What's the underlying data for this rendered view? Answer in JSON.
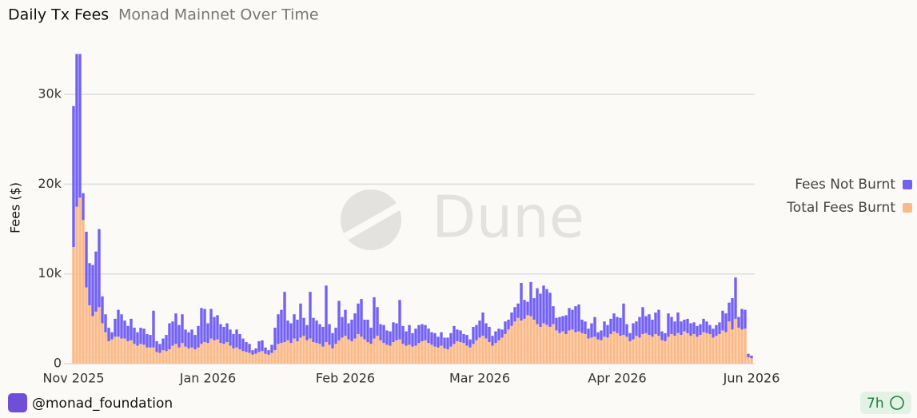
{
  "chart_data": {
    "type": "stacked_bar",
    "title": "Daily Tx Fees",
    "subtitle": "Monad Mainnet Over Time",
    "y_label": "Fees ($)",
    "watermark": "Dune",
    "footer": {
      "author": "@monad_foundation",
      "updated": "7h"
    },
    "grid": true,
    "legend": "right",
    "ylim": [
      0,
      35000
    ],
    "yticks": [
      0,
      {
        "value": 10000,
        "label": "10k"
      },
      {
        "value": 20000,
        "label": "20k"
      },
      {
        "value": 30000,
        "label": "30k"
      }
    ],
    "categories": [
      "Nov 2025",
      null,
      null,
      null,
      null,
      null,
      null,
      null,
      null,
      null,
      null,
      null,
      null,
      null,
      null,
      null,
      null,
      null,
      null,
      null,
      null,
      null,
      null,
      null,
      null,
      null,
      null,
      null,
      null,
      null,
      null,
      null,
      null,
      null,
      null,
      null,
      null,
      null,
      null,
      null,
      null,
      null,
      "Jan 2026",
      null,
      null,
      null,
      null,
      null,
      null,
      null,
      null,
      null,
      null,
      null,
      null,
      null,
      null,
      null,
      null,
      null,
      null,
      null,
      null,
      null,
      null,
      null,
      null,
      null,
      null,
      null,
      null,
      null,
      null,
      null,
      null,
      null,
      null,
      null,
      null,
      null,
      null,
      null,
      null,
      null,
      null,
      "Feb 2026",
      null,
      null,
      null,
      null,
      null,
      null,
      null,
      null,
      null,
      null,
      null,
      null,
      null,
      null,
      null,
      null,
      null,
      null,
      null,
      null,
      null,
      null,
      null,
      null,
      null,
      null,
      null,
      null,
      null,
      null,
      null,
      null,
      null,
      null,
      null,
      null,
      null,
      null,
      null,
      null,
      null,
      "Mar 2026",
      null,
      null,
      null,
      null,
      null,
      null,
      null,
      null,
      null,
      null,
      null,
      null,
      null,
      null,
      null,
      null,
      null,
      null,
      null,
      null,
      null,
      null,
      null,
      null,
      null,
      null,
      null,
      null,
      null,
      null,
      null,
      null,
      null,
      null,
      null,
      null,
      null,
      null,
      null,
      null,
      null,
      null,
      "Apr 2026",
      null,
      null,
      null,
      null,
      null,
      null,
      null,
      null,
      null,
      null,
      null,
      null,
      null,
      null,
      null,
      null,
      null,
      null,
      null,
      null,
      null,
      null,
      null,
      null,
      null,
      null,
      null,
      null,
      null,
      null,
      null,
      null,
      null,
      null,
      null,
      null,
      null,
      null,
      null,
      null,
      null,
      "Jun 2026"
    ],
    "series": [
      {
        "name": "Fees Not Burnt",
        "color": "#7361f3",
        "values": [
          15700,
          17000,
          16000,
          3000,
          6200,
          4700,
          5700,
          6700,
          8700,
          3000,
          2000,
          1500,
          800,
          2000,
          3000,
          2700,
          2000,
          1700,
          2400,
          1800,
          1500,
          1800,
          1800,
          1500,
          1400,
          4100,
          1200,
          1000,
          1300,
          1800,
          2900,
          2700,
          3400,
          2500,
          3200,
          1900,
          1800,
          2000,
          1600,
          2400,
          4000,
          3700,
          2200,
          3300,
          2600,
          2700,
          2100,
          1900,
          2100,
          1800,
          1600,
          2000,
          1700,
          1400,
          1100,
          1000,
          500,
          600,
          1200,
          1200,
          700,
          500,
          900,
          2500,
          3300,
          3700,
          5600,
          2200,
          2200,
          2700,
          2400,
          3800,
          2000,
          1700,
          5200,
          2700,
          2500,
          2200,
          2200,
          6300,
          2300,
          1700,
          1800,
          4400,
          2300,
          2900,
          1800,
          2400,
          2800,
          3400,
          4200,
          2200,
          2500,
          1800,
          4600,
          3200,
          1800,
          2000,
          1600,
          1600,
          2200,
          1900,
          4400,
          2000,
          1600,
          2200,
          1500,
          1900,
          2000,
          1900,
          1700,
          1600,
          1400,
          1500,
          1200,
          1500,
          1200,
          1300,
          1500,
          2000,
          1300,
          1300,
          1000,
          1200,
          900,
          1900,
          1700,
          1900,
          2600,
          1700,
          1700,
          1100,
          1300,
          1300,
          900,
          1400,
          1100,
          1500,
          1600,
          1600,
          4200,
          2100,
          1500,
          3800,
          2400,
          4000,
          3700,
          4200,
          4000,
          3800,
          2000,
          1400,
          1800,
          1700,
          2100,
          2500,
          2200,
          2900,
          3000,
          1500,
          1400,
          1100,
          1600,
          2200,
          800,
          1100,
          1700,
          1400,
          1700,
          2000,
          1800,
          2000,
          3500,
          1400,
          900,
          1800,
          1600,
          2300,
          3000,
          1900,
          2300,
          1900,
          2400,
          2900,
          1000,
          900,
          2600,
          1900,
          1600,
          2300,
          1500,
          1300,
          1600,
          1400,
          1300,
          1200,
          1200,
          1500,
          1300,
          1000,
          1000,
          1200,
          1300,
          2200,
          2100,
          2100,
          3500,
          4600,
          1200,
          2300,
          2100,
          400,
          300
        ]
      },
      {
        "name": "Total Fees Burnt",
        "color": "#fbb987",
        "values": [
          13000,
          17500,
          18500,
          16000,
          8500,
          6500,
          5300,
          5800,
          6300,
          4500,
          3500,
          2500,
          2700,
          3000,
          3000,
          2800,
          2800,
          2500,
          2600,
          2200,
          2000,
          2200,
          2100,
          1800,
          1800,
          1800,
          1300,
          1200,
          1500,
          1400,
          1600,
          2000,
          2200,
          1800,
          2300,
          1900,
          1700,
          1800,
          1600,
          1800,
          2200,
          2400,
          2300,
          2800,
          2600,
          2700,
          2300,
          2200,
          2400,
          2000,
          1700,
          1800,
          1600,
          1400,
          1300,
          1200,
          1000,
          1100,
          1300,
          1400,
          1100,
          1000,
          1200,
          1500,
          2200,
          2300,
          2400,
          2600,
          2300,
          2800,
          2500,
          2900,
          3100,
          2600,
          2800,
          2400,
          2300,
          2200,
          1900,
          2400,
          2100,
          1700,
          2200,
          2600,
          2900,
          3100,
          2700,
          2500,
          2800,
          3300,
          3000,
          2700,
          2400,
          2200,
          2800,
          3100,
          2600,
          2300,
          2100,
          2000,
          2400,
          2600,
          2700,
          2200,
          2000,
          2100,
          1900,
          2000,
          2300,
          2500,
          2600,
          2300,
          2100,
          1900,
          1800,
          2000,
          1700,
          1600,
          1900,
          2200,
          2500,
          2400,
          2300,
          2000,
          1800,
          2200,
          2600,
          2900,
          3100,
          2800,
          2400,
          2000,
          2300,
          2600,
          2900,
          3300,
          3800,
          4200,
          4700,
          5100,
          4800,
          5000,
          5400,
          5300,
          4900,
          4400,
          4100,
          4500,
          4300,
          4100,
          4400,
          3700,
          3400,
          3600,
          3300,
          3700,
          3800,
          3500,
          3600,
          3400,
          3300,
          2800,
          2900,
          3000,
          2700,
          2600,
          3000,
          2900,
          3300,
          3600,
          3400,
          3100,
          3200,
          3000,
          2500,
          2700,
          3100,
          2900,
          3300,
          3400,
          3200,
          3000,
          3300,
          3100,
          2600,
          2500,
          3000,
          3300,
          3100,
          3400,
          3200,
          3600,
          3400,
          3100,
          3300,
          3000,
          3200,
          3500,
          3400,
          3300,
          2900,
          3100,
          3300,
          3700,
          3500,
          4700,
          3800,
          5000,
          4000,
          3800,
          3900,
          700,
          600
        ]
      }
    ]
  }
}
